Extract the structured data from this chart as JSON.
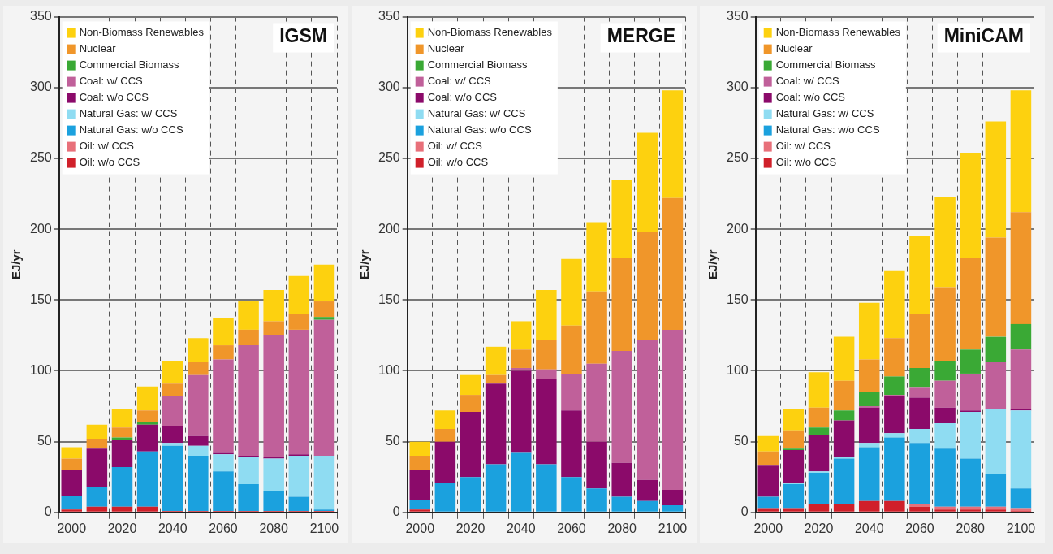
{
  "chart_data": [
    {
      "type": "bar",
      "stacked": true,
      "title": "IGSM",
      "ylabel": "EJ/yr",
      "categories": [
        "2000",
        null,
        "2020",
        null,
        "2040",
        null,
        "2060",
        null,
        "2080",
        null,
        "2100"
      ],
      "ylim": [
        0,
        350
      ],
      "yticks": [
        0,
        50,
        100,
        150,
        200,
        250,
        300,
        350
      ],
      "grid": true,
      "legend": "top left",
      "series": [
        {
          "name": "Oil: w/o CCS",
          "color": "#d0202a",
          "values": [
            2,
            4,
            4,
            4,
            1,
            1,
            1,
            1,
            1,
            1,
            1
          ]
        },
        {
          "name": "Oil: w/ CCS",
          "color": "#e8707a",
          "values": [
            0,
            0,
            0,
            0,
            0,
            0,
            0,
            0,
            0,
            0,
            0
          ]
        },
        {
          "name": "Natural Gas: w/o CCS",
          "color": "#1ba1de",
          "values": [
            10,
            14,
            28,
            39,
            46,
            39,
            28,
            19,
            14,
            10,
            1
          ]
        },
        {
          "name": "Natural Gas: w/ CCS",
          "color": "#8fdcf2",
          "values": [
            0,
            0,
            0,
            0,
            2,
            7,
            12,
            19,
            23,
            29,
            38
          ]
        },
        {
          "name": "Coal: w/o CCS",
          "color": "#8b0a6a",
          "values": [
            18,
            27,
            19,
            19,
            12,
            7,
            1,
            1,
            1,
            1,
            0
          ]
        },
        {
          "name": "Coal: w/ CCS",
          "color": "#c0609a",
          "values": [
            0,
            0,
            0,
            0,
            21,
            43,
            66,
            78,
            86,
            88,
            96
          ]
        },
        {
          "name": "Commercial Biomass",
          "color": "#3aa935",
          "values": [
            0,
            0,
            2,
            2,
            0,
            0,
            0,
            0,
            0,
            0,
            2
          ]
        },
        {
          "name": "Nuclear",
          "color": "#f0962a",
          "values": [
            8,
            7,
            7,
            8,
            9,
            9,
            10,
            11,
            10,
            11,
            11
          ]
        },
        {
          "name": "Non-Biomass Renewables",
          "color": "#fdd10f",
          "values": [
            8,
            10,
            13,
            17,
            16,
            17,
            19,
            20,
            22,
            27,
            26
          ]
        }
      ]
    },
    {
      "type": "bar",
      "stacked": true,
      "title": "MERGE",
      "ylabel": "EJ/yr",
      "categories": [
        "2000",
        null,
        "2020",
        null,
        "2040",
        null,
        "2060",
        null,
        "2080",
        null,
        "2100"
      ],
      "ylim": [
        0,
        350
      ],
      "yticks": [
        0,
        50,
        100,
        150,
        200,
        250,
        300,
        350
      ],
      "grid": true,
      "legend": "top left",
      "series": [
        {
          "name": "Oil: w/o CCS",
          "color": "#d0202a",
          "values": [
            2,
            0,
            0,
            0,
            0,
            0,
            0,
            0,
            0,
            0,
            0
          ]
        },
        {
          "name": "Oil: w/ CCS",
          "color": "#e8707a",
          "values": [
            0,
            0,
            0,
            0,
            0,
            0,
            0,
            0,
            0,
            0,
            0
          ]
        },
        {
          "name": "Natural Gas: w/o CCS",
          "color": "#1ba1de",
          "values": [
            7,
            21,
            25,
            34,
            42,
            34,
            25,
            17,
            11,
            8,
            5
          ]
        },
        {
          "name": "Natural Gas: w/ CCS",
          "color": "#8fdcf2",
          "values": [
            0,
            0,
            0,
            0,
            0,
            0,
            0,
            0,
            0,
            0,
            0
          ]
        },
        {
          "name": "Coal: w/o CCS",
          "color": "#8b0a6a",
          "values": [
            21,
            29,
            46,
            57,
            58,
            60,
            47,
            33,
            24,
            15,
            11
          ]
        },
        {
          "name": "Coal: w/ CCS",
          "color": "#c0609a",
          "values": [
            0,
            0,
            0,
            0,
            2,
            7,
            26,
            55,
            79,
            99,
            113
          ]
        },
        {
          "name": "Commercial Biomass",
          "color": "#3aa935",
          "values": [
            0,
            0,
            0,
            0,
            0,
            0,
            0,
            0,
            0,
            0,
            0
          ]
        },
        {
          "name": "Nuclear",
          "color": "#f0962a",
          "values": [
            10,
            9,
            12,
            6,
            13,
            21,
            34,
            51,
            66,
            76,
            93
          ]
        },
        {
          "name": "Non-Biomass Renewables",
          "color": "#fdd10f",
          "values": [
            10,
            13,
            14,
            20,
            20,
            35,
            47,
            49,
            55,
            70,
            76
          ]
        }
      ]
    },
    {
      "type": "bar",
      "stacked": true,
      "title": "MiniCAM",
      "ylabel": "EJ/yr",
      "categories": [
        "2000",
        null,
        "2020",
        null,
        "2040",
        null,
        "2060",
        null,
        "2080",
        null,
        "2100"
      ],
      "ylim": [
        0,
        350
      ],
      "yticks": [
        0,
        50,
        100,
        150,
        200,
        250,
        300,
        350
      ],
      "grid": true,
      "legend": "top left",
      "series": [
        {
          "name": "Oil: w/o CCS",
          "color": "#d0202a",
          "values": [
            3,
            3,
            6,
            6,
            8,
            8,
            4,
            2,
            2,
            2,
            1
          ]
        },
        {
          "name": "Oil: w/ CCS",
          "color": "#e8707a",
          "values": [
            0,
            0,
            0,
            0,
            0,
            0,
            2,
            2,
            2,
            2,
            2
          ]
        },
        {
          "name": "Natural Gas: w/o CCS",
          "color": "#1ba1de",
          "values": [
            8,
            17,
            22,
            32,
            38,
            45,
            43,
            41,
            34,
            23,
            14
          ]
        },
        {
          "name": "Natural Gas: w/ CCS",
          "color": "#8fdcf2",
          "values": [
            0,
            1,
            1,
            1,
            3,
            3,
            10,
            18,
            33,
            46,
            55
          ]
        },
        {
          "name": "Coal: w/o CCS",
          "color": "#8b0a6a",
          "values": [
            22,
            23,
            26,
            26,
            25,
            26,
            22,
            11,
            1,
            0,
            1
          ]
        },
        {
          "name": "Coal: w/ CCS",
          "color": "#c0609a",
          "values": [
            0,
            0,
            0,
            0,
            1,
            1,
            7,
            19,
            26,
            33,
            42
          ]
        },
        {
          "name": "Commercial Biomass",
          "color": "#3aa935",
          "values": [
            0,
            1,
            5,
            7,
            10,
            13,
            14,
            14,
            17,
            18,
            18
          ]
        },
        {
          "name": "Nuclear",
          "color": "#f0962a",
          "values": [
            10,
            13,
            14,
            21,
            23,
            27,
            38,
            52,
            65,
            70,
            79
          ]
        },
        {
          "name": "Non-Biomass Renewables",
          "color": "#fdd10f",
          "values": [
            11,
            15,
            25,
            31,
            40,
            48,
            55,
            64,
            74,
            82,
            86
          ]
        }
      ]
    }
  ]
}
